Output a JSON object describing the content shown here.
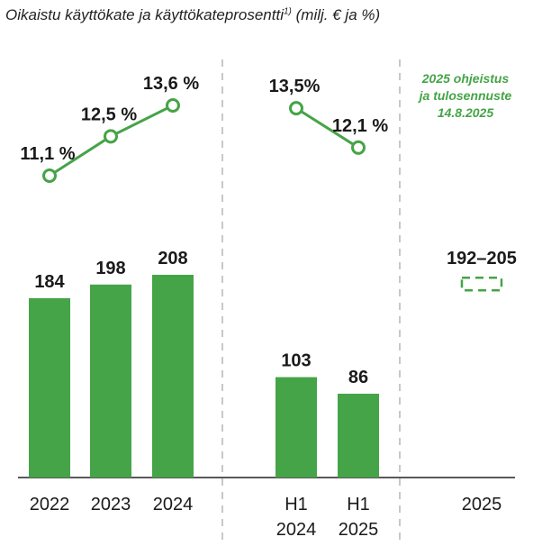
{
  "title": "Oikaistu käyttökate ja käyttökateprosentti",
  "title_sup": "1)",
  "title_unit": "(milj. € ja %)",
  "colors": {
    "bar": "#45a447",
    "line": "#45a447",
    "text": "#1a1a1a",
    "divider": "#c8c8c8",
    "axis": "#222222",
    "note": "#45a447"
  },
  "chart_data": {
    "type": "bar+line",
    "groups": [
      {
        "categories": [
          "2022",
          "2023",
          "2024"
        ],
        "category_lines": [
          [
            "2022"
          ],
          [
            "2023"
          ],
          [
            "2024"
          ]
        ],
        "bar_values": [
          184,
          198,
          208
        ],
        "bar_labels": [
          "184",
          "198",
          "208"
        ],
        "line_values": [
          11.1,
          12.5,
          13.6
        ],
        "line_labels": [
          "11,1 %",
          "12,5 %",
          "13,6 %"
        ]
      },
      {
        "categories": [
          "H1 2024",
          "H1 2025"
        ],
        "category_lines": [
          [
            "H1",
            "2024"
          ],
          [
            "H1",
            "2025"
          ]
        ],
        "bar_values": [
          103,
          86
        ],
        "bar_labels": [
          "103",
          "86"
        ],
        "line_values": [
          13.5,
          12.1
        ],
        "line_labels": [
          "13,5%",
          "12,1 %"
        ]
      },
      {
        "categories": [
          "2025"
        ],
        "category_lines": [
          [
            "2025"
          ]
        ],
        "guidance_range": [
          192,
          205
        ],
        "guidance_label": "192–205",
        "note_lines": [
          "2025 ohjeistus",
          "ja tulosennuste",
          "14.8.2025"
        ]
      }
    ]
  }
}
